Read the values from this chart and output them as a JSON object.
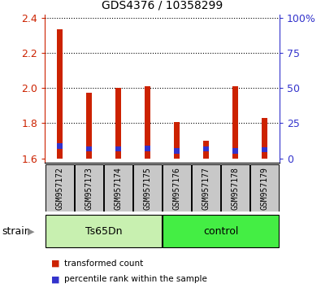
{
  "title": "GDS4376 / 10358299",
  "samples": [
    "GSM957172",
    "GSM957173",
    "GSM957174",
    "GSM957175",
    "GSM957176",
    "GSM957177",
    "GSM957178",
    "GSM957179"
  ],
  "red_values": [
    2.335,
    1.975,
    2.0,
    2.01,
    1.805,
    1.7,
    2.01,
    1.83
  ],
  "blue_top": [
    1.685,
    1.668,
    1.668,
    1.672,
    1.658,
    1.668,
    1.658,
    1.665
  ],
  "blue_bottom": [
    1.655,
    1.638,
    1.638,
    1.642,
    1.628,
    1.638,
    1.628,
    1.635
  ],
  "bar_bottom": 1.6,
  "ylim_left": [
    1.575,
    2.42
  ],
  "yticks_left": [
    1.6,
    1.8,
    2.0,
    2.2,
    2.4
  ],
  "yticks_right": [
    0,
    25,
    50,
    75,
    100
  ],
  "yright_labels": [
    "0",
    "25",
    "50",
    "75",
    "100%"
  ],
  "red_color": "#cc2200",
  "blue_color": "#3333cc",
  "group1_label": "Ts65Dn",
  "group1_color": "#c8f0b0",
  "group2_label": "control",
  "group2_color": "#44ee44",
  "strain_label": "strain",
  "legend1": "transformed count",
  "legend2": "percentile rank within the sample",
  "bar_width": 0.18,
  "tick_label_fontsize": 7.0
}
